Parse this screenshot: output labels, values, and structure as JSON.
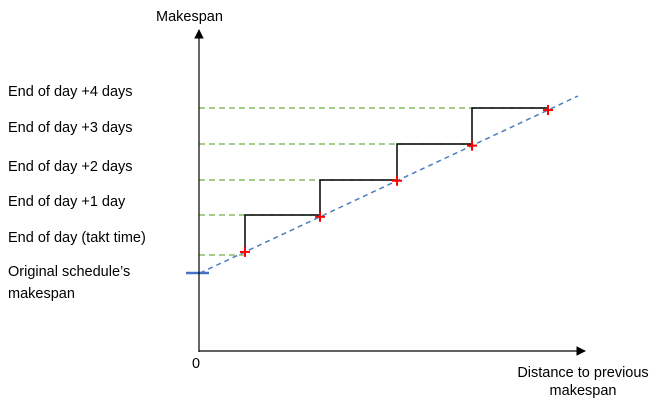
{
  "axes": {
    "y_title": "Makespan",
    "x_title_line1": "Distance to previous",
    "x_title_line2": "makespan",
    "origin": "0"
  },
  "levels": [
    {
      "label": "End of day +4 days"
    },
    {
      "label": "End of day +3 days"
    },
    {
      "label": "End of day +2 days"
    },
    {
      "label": "End of day +1 day"
    },
    {
      "label": "End of day (takt time)"
    }
  ],
  "original": {
    "line1": "Original schedule’s",
    "line2": "makespan"
  },
  "colors": {
    "axis": "#000000",
    "trend": "#4a7ebb",
    "guide": "#70ad47",
    "step": "#000000",
    "marker": "#ff0000",
    "original_tick": "#4472c4"
  }
}
